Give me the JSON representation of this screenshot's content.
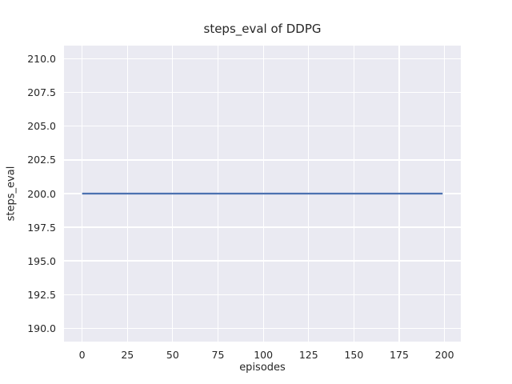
{
  "chart_data": {
    "type": "line",
    "title": "steps_eval of DDPG",
    "xlabel": "episodes",
    "ylabel": "steps_eval",
    "x_ticks": [
      {
        "value": 0,
        "label": "0"
      },
      {
        "value": 25,
        "label": "25"
      },
      {
        "value": 50,
        "label": "50"
      },
      {
        "value": 75,
        "label": "75"
      },
      {
        "value": 100,
        "label": "100"
      },
      {
        "value": 125,
        "label": "125"
      },
      {
        "value": 150,
        "label": "150"
      },
      {
        "value": 175,
        "label": "175"
      },
      {
        "value": 200,
        "label": "200"
      }
    ],
    "y_ticks": [
      {
        "value": 190.0,
        "label": "190.0"
      },
      {
        "value": 192.5,
        "label": "192.5"
      },
      {
        "value": 195.0,
        "label": "195.0"
      },
      {
        "value": 197.5,
        "label": "197.5"
      },
      {
        "value": 200.0,
        "label": "200.0"
      },
      {
        "value": 202.5,
        "label": "202.5"
      },
      {
        "value": 205.0,
        "label": "205.0"
      },
      {
        "value": 207.5,
        "label": "207.5"
      },
      {
        "value": 210.0,
        "label": "210.0"
      }
    ],
    "xlim": [
      -10,
      209
    ],
    "ylim": [
      189,
      211
    ],
    "grid": true,
    "legend": "none",
    "series": [
      {
        "name": "DDPG",
        "color": "#4c72b0",
        "constant_y": 200,
        "x_start": 0,
        "x_end": 199,
        "points": [
          [
            0,
            200
          ],
          [
            199,
            200
          ]
        ]
      }
    ]
  },
  "style": {
    "figure_bg": "#ffffff",
    "plot_bg": "#eaeaf2",
    "grid_color": "#ffffff",
    "text_color": "#262626",
    "line_width": 2.25
  }
}
